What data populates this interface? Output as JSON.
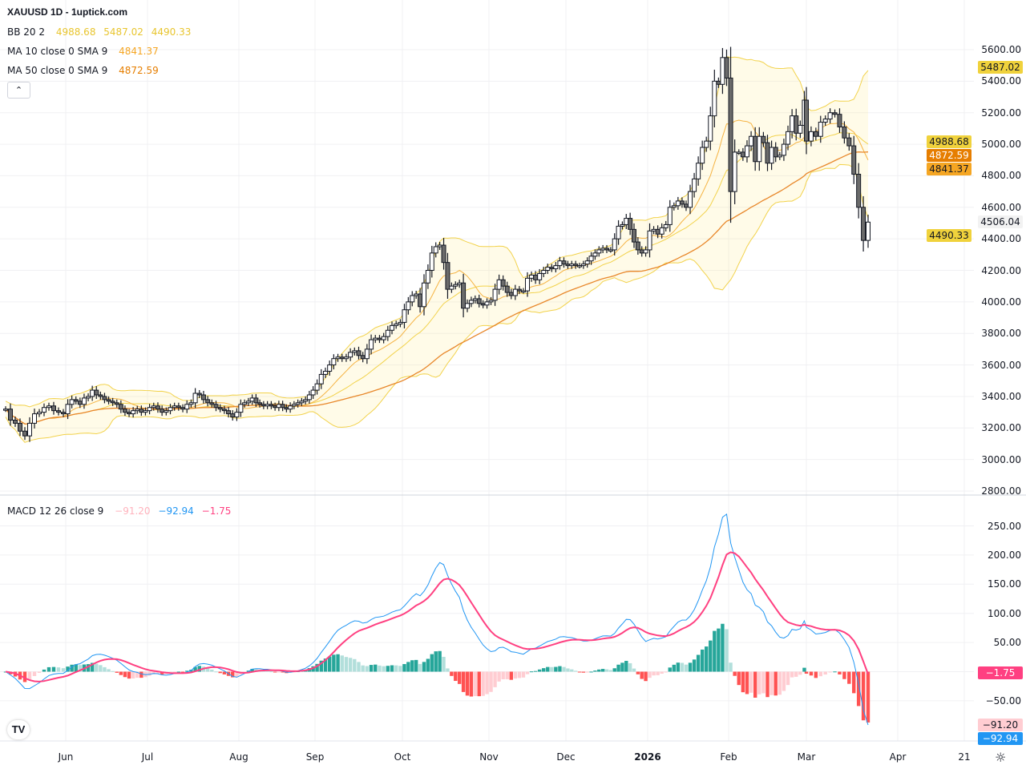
{
  "header": {
    "title": "XAUUSD 1D - 1uptick.com"
  },
  "legend": {
    "bb": {
      "label": "BB 20 2",
      "basis": "4988.68",
      "upper": "5487.02",
      "lower": "4490.33",
      "color": "#e8c52e"
    },
    "ma10": {
      "label": "MA 10 close 0 SMA 9",
      "value": "4841.37",
      "color": "#f5a623"
    },
    "ma50": {
      "label": "MA 50 close 0 SMA 9",
      "value": "4872.59",
      "color": "#e67e00"
    },
    "macd": {
      "label": "MACD 12 26 close 9",
      "v1": "−91.20",
      "v2": "−92.94",
      "v3": "−1.75",
      "c1": "#ffcdd2",
      "c2": "#2196f3",
      "c3": "#ff4081"
    }
  },
  "badges": [
    {
      "text": "5487.02",
      "price": 5487.02,
      "bg": "#f0d23c",
      "fg": "#131722"
    },
    {
      "text": "4988.68",
      "price": 4988.68,
      "bg": "#f0d23c",
      "fg": "#131722",
      "pos": "stack1"
    },
    {
      "text": "4872.59",
      "price": 4872.59,
      "bg": "#e67e00",
      "fg": "#ffffff",
      "pos": "stack2"
    },
    {
      "text": "4841.37",
      "price": 4841.37,
      "bg": "#f5a623",
      "fg": "#131722",
      "pos": "stack3"
    },
    {
      "text": "4506.04",
      "price": 4506.04,
      "bg": "#f2f2f2",
      "fg": "#131722"
    },
    {
      "text": "4490.33",
      "price": 4490.33,
      "bg": "#f0d23c",
      "fg": "#131722",
      "pos": "below"
    }
  ],
  "macd_badges": [
    {
      "text": "−1.75",
      "value": -1.75,
      "bg": "#ff4081",
      "fg": "#ffffff"
    },
    {
      "text": "−91.20",
      "value": -91.2,
      "bg": "#ffcdd2",
      "fg": "#131722"
    },
    {
      "text": "−92.94",
      "value": -92.94,
      "bg": "#2196f3",
      "fg": "#ffffff",
      "pos": "below"
    }
  ],
  "price_axis": [
    "5600.00",
    "5400.00",
    "5200.00",
    "5000.00",
    "4800.00",
    "4600.00",
    "4400.00",
    "4200.00",
    "4000.00",
    "3800.00",
    "3600.00",
    "3400.00",
    "3200.00",
    "3000.00",
    "2800.00"
  ],
  "macd_axis": [
    "250.00",
    "200.00",
    "150.00",
    "100.00",
    "50.00",
    "0.00",
    "−50.00"
  ],
  "time_axis": [
    {
      "label": "Jun"
    },
    {
      "label": "Jul"
    },
    {
      "label": "Aug"
    },
    {
      "label": "Sep"
    },
    {
      "label": "Oct"
    },
    {
      "label": "Nov"
    },
    {
      "label": "Dec"
    },
    {
      "label": "2026",
      "bold": true
    },
    {
      "label": "Feb"
    },
    {
      "label": "Mar"
    },
    {
      "label": "Apr"
    },
    {
      "label": "21"
    }
  ],
  "icons": {
    "collapse": "chevron-up-icon",
    "logo": "tradingview-logo",
    "settings": "gear-icon"
  },
  "logo_text": "TV",
  "collapse_glyph": "⌃",
  "gear_glyph": "☼",
  "chart_data": {
    "type": "candlestick",
    "title": "XAUUSD 1D - 1uptick.com",
    "price_range": [
      2800,
      5600
    ],
    "macd_range": [
      -100,
      260
    ],
    "grid": true,
    "months": [
      {
        "m": "2025-05",
        "closes": [
          3320,
          3250,
          3230,
          3180,
          3150,
          3230,
          3290,
          3300,
          3330,
          3340,
          3310,
          3300,
          3290
        ]
      },
      {
        "m": "2025-06",
        "closes": [
          3350,
          3380,
          3370,
          3350,
          3390,
          3400,
          3440,
          3410,
          3400,
          3380,
          3370,
          3360,
          3350,
          3320,
          3300,
          3290,
          3310,
          3320,
          3300,
          3310
        ]
      },
      {
        "m": "2025-07",
        "closes": [
          3330,
          3340,
          3320,
          3300,
          3310,
          3330,
          3340,
          3330,
          3320,
          3350,
          3360,
          3420,
          3410,
          3380,
          3360,
          3350,
          3330,
          3320,
          3310,
          3290,
          3270,
          3300
        ]
      },
      {
        "m": "2025-08",
        "closes": [
          3350,
          3360,
          3370,
          3390,
          3360,
          3350,
          3340,
          3350,
          3340,
          3330,
          3350,
          3330,
          3320,
          3340,
          3350,
          3360,
          3370,
          3380,
          3410,
          3440
        ]
      },
      {
        "m": "2025-09",
        "closes": [
          3480,
          3540,
          3560,
          3600,
          3640,
          3650,
          3640,
          3650,
          3680,
          3690,
          3660,
          3640,
          3700,
          3760,
          3770,
          3760,
          3780,
          3820,
          3850,
          3860,
          3870
        ]
      },
      {
        "m": "2025-10",
        "closes": [
          3950,
          4000,
          4040,
          4050,
          3970,
          4120,
          4200,
          4310,
          4350,
          4360,
          4250,
          4080,
          4100,
          4110,
          4120,
          3960,
          3990,
          4010,
          4020,
          3990,
          3980,
          4000
        ]
      },
      {
        "m": "2025-11",
        "closes": [
          4010,
          4080,
          4140,
          4100,
          4060,
          4040,
          4080,
          4070,
          4070,
          4150,
          4170,
          4140,
          4180,
          4200,
          4220,
          4210,
          4230,
          4260,
          4240
        ]
      },
      {
        "m": "2025-12",
        "closes": [
          4230,
          4240,
          4230,
          4230,
          4240,
          4260,
          4290,
          4310,
          4330,
          4340,
          4330,
          4330,
          4400,
          4480,
          4490,
          4530,
          4460,
          4380,
          4330,
          4310,
          4330
        ]
      },
      {
        "m": "2026-01",
        "closes": [
          4450,
          4460,
          4430,
          4470,
          4490,
          4600,
          4610,
          4640,
          4620,
          4600,
          4700,
          4780,
          4880,
          4980,
          5020,
          5180,
          5400,
          5380,
          5550,
          5420
        ]
      },
      {
        "m": "2026-02",
        "closes": [
          4700,
          4950,
          4950,
          4920,
          4990,
          5050,
          4890,
          5050,
          5010,
          4880,
          4980,
          4920,
          4930,
          5000,
          5080,
          5180,
          5070,
          5120,
          5280
        ]
      },
      {
        "m": "2026-03",
        "closes": [
          5020,
          5080,
          5050,
          5140,
          5160,
          5200,
          5190,
          5110,
          5040,
          4990,
          4810,
          4600,
          4390,
          4506.04
        ]
      }
    ]
  }
}
